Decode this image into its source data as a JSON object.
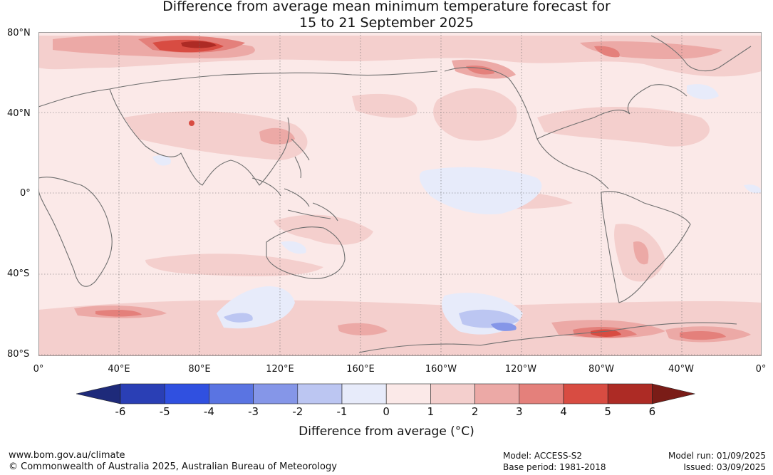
{
  "title_line1": "Difference from average mean minimum temperature forecast for",
  "title_line2": "15 to 21 September 2025",
  "lat_labels": [
    "80°N",
    "40°N",
    "0°",
    "40°S",
    "80°S"
  ],
  "lon_labels": [
    "0°",
    "40°E",
    "80°E",
    "120°E",
    "160°E",
    "160°W",
    "120°W",
    "80°W",
    "40°W",
    "0°"
  ],
  "colorbar": {
    "title": "Difference from average (°C)",
    "ticks": [
      "-6",
      "-5",
      "-4",
      "-3",
      "-2",
      "-1",
      "0",
      "1",
      "2",
      "3",
      "4",
      "5",
      "6"
    ],
    "colors": [
      "#1e2a7a",
      "#2a3fb5",
      "#3050e0",
      "#5a74e2",
      "#8596e8",
      "#bcc6f2",
      "#e7ebfa",
      "#fbe9e8",
      "#f4cfcd",
      "#eca9a6",
      "#e4807b",
      "#d84c42",
      "#ad2b25",
      "#7a1c17"
    ]
  },
  "footer": {
    "website": "www.bom.gov.au/climate",
    "copyright": "© Commonwealth of Australia 2025, Australian Bureau of Meteorology",
    "model": "Model: ACCESS-S2",
    "base_period": "Base period: 1981-2018",
    "model_run": "Model run: 01/09/2025",
    "issued": "Issued: 03/09/2025"
  }
}
